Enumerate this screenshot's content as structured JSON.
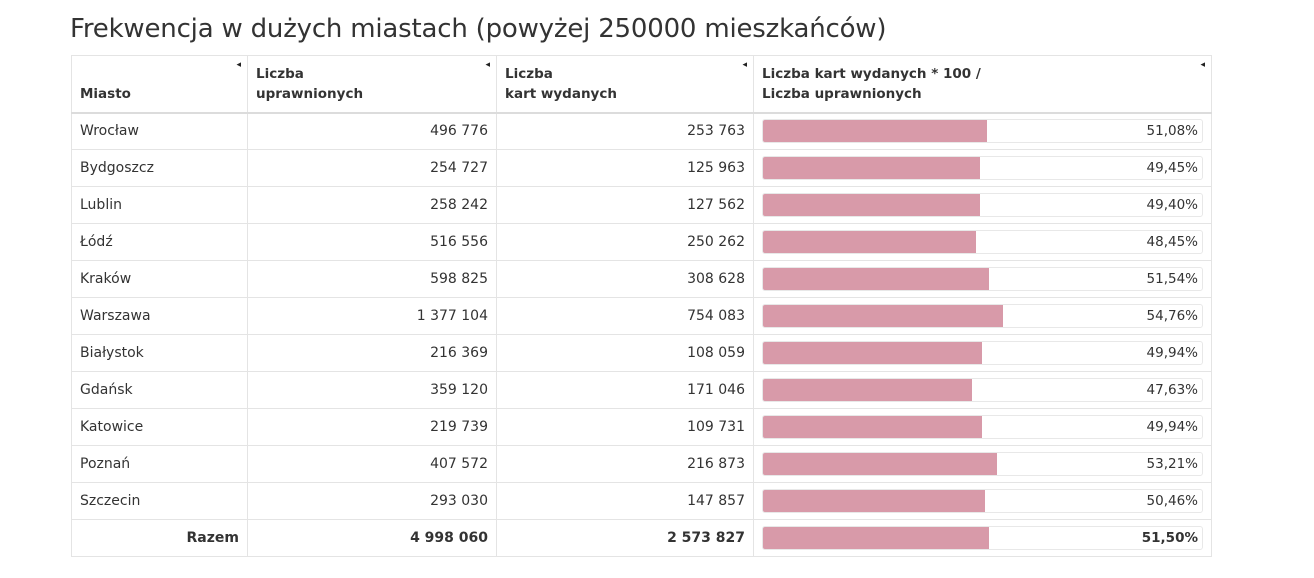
{
  "title": "Frekwencja w dużych miastach (powyżej 250000 mieszkańców)",
  "colors": {
    "bar": "#d89aa9",
    "text": "#333333",
    "border": "#e4e4e4"
  },
  "header": {
    "city": "Miasto",
    "eligible_line1": "Liczba",
    "eligible_line2": "uprawnionych",
    "issued_line1": "Liczba",
    "issued_line2": "kart wydanych",
    "ratio_line1": "Liczba kart wydanych * 100 /",
    "ratio_line2": "Liczba uprawnionych",
    "sort_icon": "◂"
  },
  "rows": [
    {
      "city": "Wrocław",
      "eligible": "496 776",
      "issued": "253 763",
      "turnout_label": "51,08%",
      "turnout": 51.08
    },
    {
      "city": "Bydgoszcz",
      "eligible": "254 727",
      "issued": "125 963",
      "turnout_label": "49,45%",
      "turnout": 49.45
    },
    {
      "city": "Lublin",
      "eligible": "258 242",
      "issued": "127 562",
      "turnout_label": "49,40%",
      "turnout": 49.4
    },
    {
      "city": "Łódź",
      "eligible": "516 556",
      "issued": "250 262",
      "turnout_label": "48,45%",
      "turnout": 48.45
    },
    {
      "city": "Kraków",
      "eligible": "598 825",
      "issued": "308 628",
      "turnout_label": "51,54%",
      "turnout": 51.54
    },
    {
      "city": "Warszawa",
      "eligible": "1 377 104",
      "issued": "754 083",
      "turnout_label": "54,76%",
      "turnout": 54.76
    },
    {
      "city": "Białystok",
      "eligible": "216 369",
      "issued": "108 059",
      "turnout_label": "49,94%",
      "turnout": 49.94
    },
    {
      "city": "Gdańsk",
      "eligible": "359 120",
      "issued": "171 046",
      "turnout_label": "47,63%",
      "turnout": 47.63
    },
    {
      "city": "Katowice",
      "eligible": "219 739",
      "issued": "109 731",
      "turnout_label": "49,94%",
      "turnout": 49.94
    },
    {
      "city": "Poznań",
      "eligible": "407 572",
      "issued": "216 873",
      "turnout_label": "53,21%",
      "turnout": 53.21
    },
    {
      "city": "Szczecin",
      "eligible": "293 030",
      "issued": "147 857",
      "turnout_label": "50,46%",
      "turnout": 50.46
    }
  ],
  "total": {
    "label": "Razem",
    "eligible": "4 998 060",
    "issued": "2 573 827",
    "turnout_label": "51,50%",
    "turnout": 51.5
  }
}
